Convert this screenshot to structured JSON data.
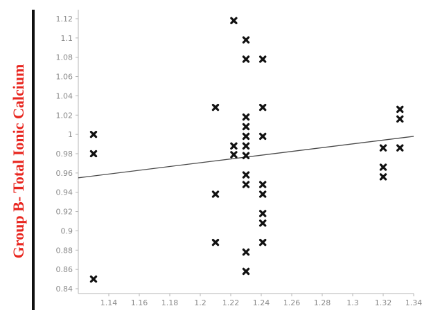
{
  "chart_data": {
    "type": "scatter",
    "title": "",
    "xlabel": "",
    "ylabel": "Group B- Total Ionic Calcium",
    "xlim": [
      1.12,
      1.34
    ],
    "ylim": [
      0.835,
      1.125
    ],
    "x_ticks": [
      "1.14",
      "1.16",
      "1.18",
      "1.2",
      "1.22",
      "1.24",
      "1.26",
      "1.28",
      "1.3",
      "1.32",
      "1.34"
    ],
    "y_ticks": [
      "0.84",
      "0.86",
      "0.88",
      "0.9",
      "0.92",
      "0.94",
      "0.96",
      "0.98",
      "1",
      "1.02",
      "1.04",
      "1.06",
      "1.08",
      "1.1",
      "1.12"
    ],
    "grid": false,
    "marker": "x",
    "colors": {
      "marker": "#111111",
      "trendline": "#4a4a4a",
      "ylabel": "#e8261f",
      "ticks": "#8a8a8a"
    },
    "series": [
      {
        "points": [
          [
            1.13,
            1.0
          ],
          [
            1.13,
            0.98
          ],
          [
            1.13,
            0.85
          ],
          [
            1.21,
            1.028
          ],
          [
            1.21,
            0.938
          ],
          [
            1.21,
            0.888
          ],
          [
            1.222,
            1.118
          ],
          [
            1.222,
            0.988
          ],
          [
            1.222,
            0.979
          ],
          [
            1.23,
            1.098
          ],
          [
            1.23,
            1.078
          ],
          [
            1.23,
            1.018
          ],
          [
            1.23,
            1.008
          ],
          [
            1.23,
            0.998
          ],
          [
            1.23,
            0.988
          ],
          [
            1.23,
            0.978
          ],
          [
            1.23,
            0.958
          ],
          [
            1.23,
            0.948
          ],
          [
            1.23,
            0.878
          ],
          [
            1.23,
            0.858
          ],
          [
            1.241,
            1.078
          ],
          [
            1.241,
            1.028
          ],
          [
            1.241,
            0.998
          ],
          [
            1.241,
            0.948
          ],
          [
            1.241,
            0.938
          ],
          [
            1.241,
            0.918
          ],
          [
            1.241,
            0.908
          ],
          [
            1.241,
            0.888
          ],
          [
            1.32,
            0.986
          ],
          [
            1.32,
            0.966
          ],
          [
            1.32,
            0.956
          ],
          [
            1.331,
            1.026
          ],
          [
            1.331,
            1.016
          ],
          [
            1.331,
            0.986
          ]
        ]
      }
    ],
    "trendline": {
      "x": [
        1.12,
        1.34
      ],
      "y": [
        0.955,
        0.998
      ]
    }
  }
}
